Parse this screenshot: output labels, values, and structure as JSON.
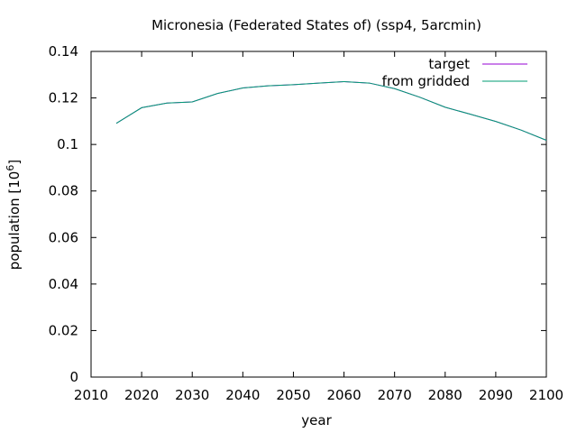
{
  "chart_data": {
    "type": "line",
    "title": "Micronesia (Federated States of) (ssp4, 5arcmin)",
    "xlabel": "year",
    "ylabel_main": "population [10",
    "ylabel_sup": "6",
    "ylabel_close": "]",
    "xlim": [
      2010,
      2100
    ],
    "ylim": [
      0,
      0.14
    ],
    "xticks": [
      "2010",
      "2020",
      "2030",
      "2040",
      "2050",
      "2060",
      "2070",
      "2080",
      "2090",
      "2100"
    ],
    "yticks": [
      "0",
      "0.02",
      "0.04",
      "0.06",
      "0.08",
      "0.1",
      "0.12",
      "0.14"
    ],
    "grid": false,
    "legend_position": "top-right",
    "x": [
      2015,
      2020,
      2025,
      2030,
      2035,
      2040,
      2045,
      2050,
      2055,
      2060,
      2065,
      2070,
      2075,
      2080,
      2085,
      2090,
      2095,
      2100
    ],
    "series": [
      {
        "name": "target",
        "color": "#9400d3",
        "values": [
          0.1091,
          0.1158,
          0.1178,
          0.1183,
          0.1219,
          0.1243,
          0.1252,
          0.1257,
          0.1264,
          0.127,
          0.1264,
          0.124,
          0.1203,
          0.116,
          0.113,
          0.1099,
          0.1062,
          0.1018
        ]
      },
      {
        "name": "from gridded",
        "color": "#009e73",
        "values": [
          0.1091,
          0.1158,
          0.1178,
          0.1183,
          0.1219,
          0.1243,
          0.1252,
          0.1257,
          0.1264,
          0.127,
          0.1264,
          0.124,
          0.1203,
          0.116,
          0.113,
          0.1099,
          0.1062,
          0.1018
        ]
      }
    ]
  }
}
